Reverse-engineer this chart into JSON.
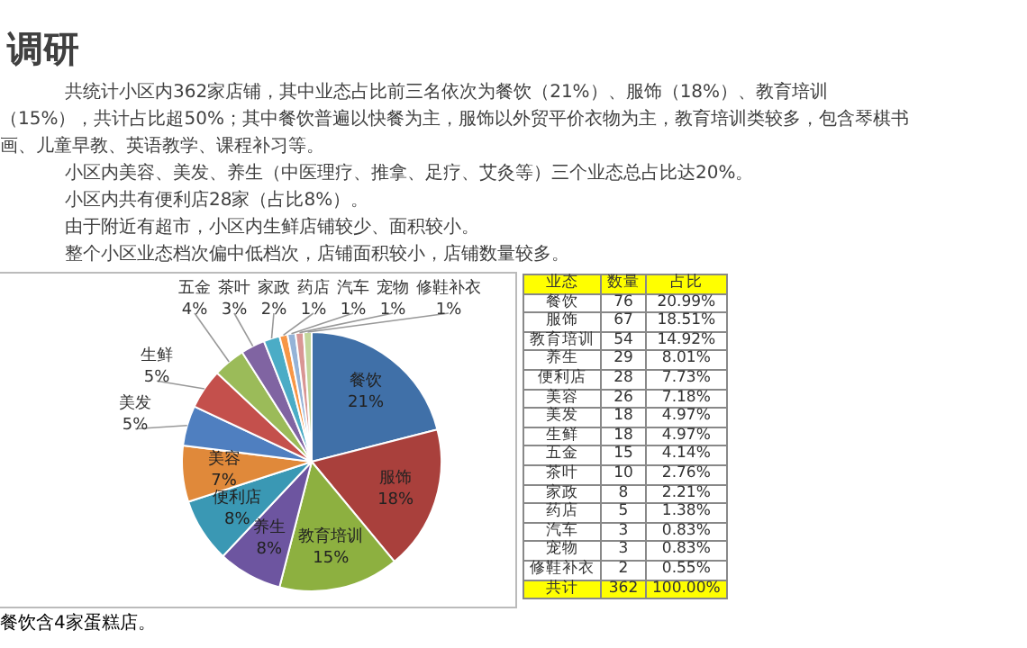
{
  "chart_data": {
    "type": "pie",
    "title": "调研",
    "categories": [
      "餐饮",
      "服饰",
      "教育培训",
      "养生",
      "便利店",
      "美容",
      "美发",
      "生鲜",
      "五金",
      "茶叶",
      "家政",
      "药店",
      "汽车",
      "宠物",
      "修鞋补衣"
    ],
    "values": [
      21,
      18,
      15,
      8,
      8,
      7,
      5,
      5,
      4,
      3,
      2,
      1,
      1,
      1,
      1
    ],
    "colors": [
      "#4070a8",
      "#a9403c",
      "#8db040",
      "#6d55a0",
      "#3a98b4",
      "#e0893a",
      "#4f7fc0",
      "#c4504c",
      "#9bbb59",
      "#8064a2",
      "#4bacc6",
      "#f79646",
      "#95b3d7",
      "#d99694",
      "#c3d69b"
    ],
    "value_labels": [
      "21%",
      "18%",
      "15%",
      "8%",
      "8%",
      "7%",
      "5%",
      "5%",
      "4%",
      "3%",
      "2%",
      "1%",
      "1%",
      "1%",
      "1%"
    ],
    "annotations": [
      "共统计小区内362家店铺，其中业态占比前三名依次为餐饮（21%）、服饰（18%）、教育培训（15%），共计占比超50%；其中餐饮普遍以快餐为主，服饰以外贸平价衣物为主，教育培训类较多，包含琴棋书画、儿童早教、英语教学、课程补习等。",
      "小区内美容、美发、养生（中医理疗、推拿、足疗、艾灸等）三个业态总占比达20%。",
      "小区内共有便利店28家（占比8%）。",
      "由于附近有超市，小区内生鲜店铺较少、面积较小。",
      "整个小区业态档次偏中低档次，店铺面积较小，店铺数量较多。",
      "餐饮含4家蛋糕店。",
      "业态",
      "数量",
      "占比",
      "共计",
      "362",
      "100.00%",
      "76",
      "67",
      "54",
      "29",
      "28",
      "26",
      "18",
      "18",
      "15",
      "10",
      "8",
      "5",
      "3",
      "3",
      "2",
      "20.99%",
      "18.51%",
      "14.92%",
      "8.01%",
      "7.73%",
      "7.18%",
      "4.97%",
      "4.97%",
      "4.14%",
      "2.76%",
      "2.21%",
      "1.38%",
      "0.83%",
      "0.83%",
      "0.55%"
    ]
  }
}
